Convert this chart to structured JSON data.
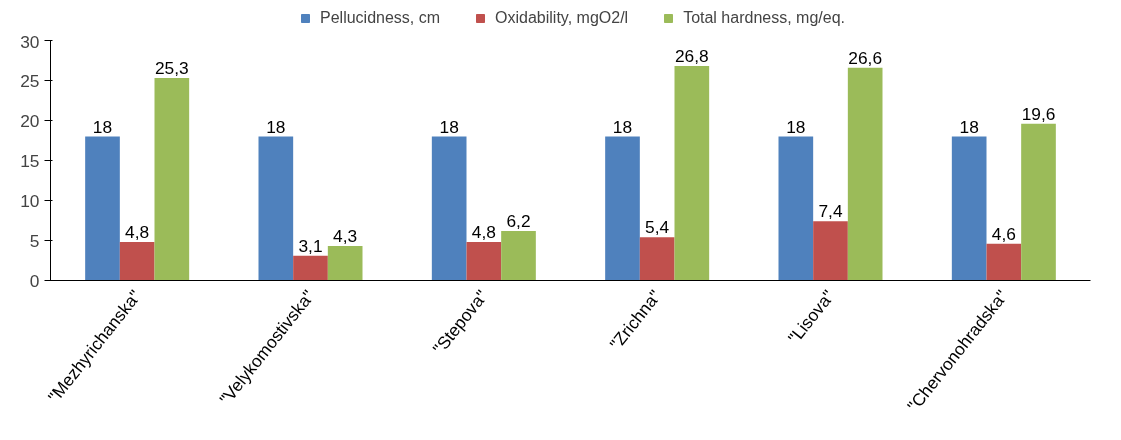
{
  "chart_data": {
    "type": "bar",
    "categories": [
      "\"Mezhyrichanska\"",
      "\"Velykomostivska\"",
      "\"Stepova\"",
      "\"Zrichna\"",
      "\"Lisova\"",
      "\"Chervonohradska\""
    ],
    "series": [
      {
        "name": "Pellucidness, cm",
        "color": "#4f81bd",
        "values": [
          18,
          18,
          18,
          18,
          18,
          18
        ],
        "value_labels": [
          "18",
          "18",
          "18",
          "18",
          "18",
          "18"
        ]
      },
      {
        "name": "Oxidability, mgO2/l",
        "color": "#c0504d",
        "values": [
          4.8,
          3.1,
          4.8,
          5.4,
          7.4,
          4.6
        ],
        "value_labels": [
          "4,8",
          "3,1",
          "4,8",
          "5,4",
          "7,4",
          "4,6"
        ]
      },
      {
        "name": "Total hardness, mg/eq.",
        "color": "#9bbb59",
        "values": [
          25.3,
          4.3,
          6.2,
          26.8,
          26.6,
          19.6
        ],
        "value_labels": [
          "25,3",
          "4,3",
          "6,2",
          "26,8",
          "26,6",
          "19,6"
        ]
      }
    ],
    "ylim": [
      0,
      30
    ],
    "yticks": [
      0,
      5,
      10,
      15,
      20,
      25,
      30
    ],
    "grid": false,
    "legend": "top"
  }
}
